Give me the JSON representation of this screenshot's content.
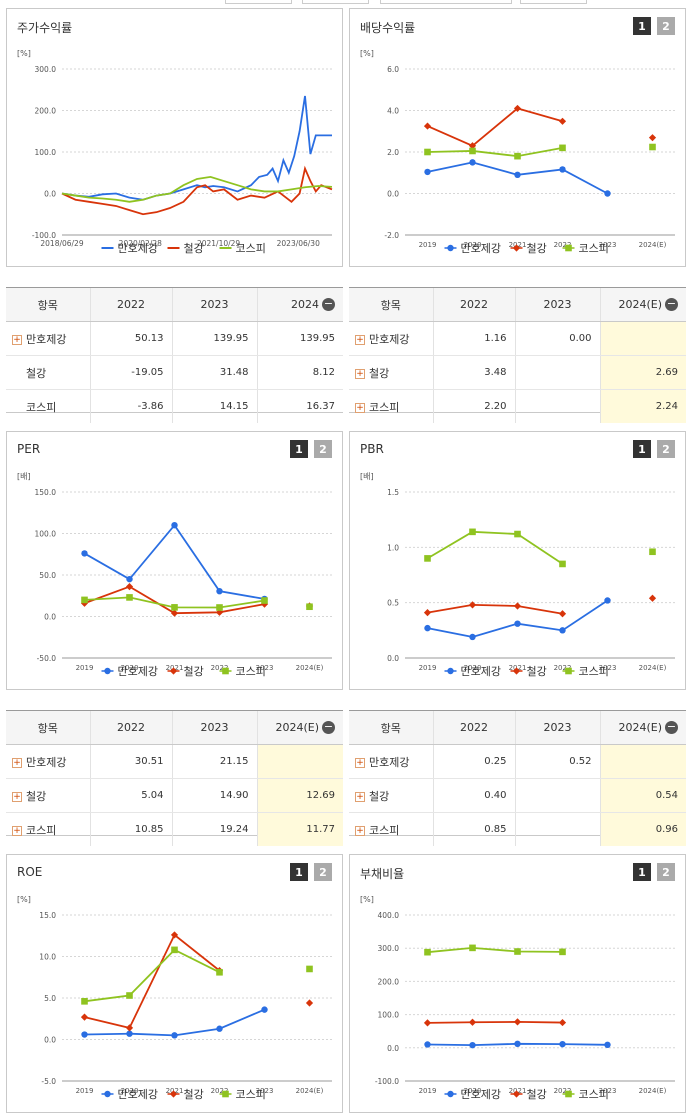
{
  "colors": {
    "s1": "#2a6ee2",
    "s2": "#d8340a",
    "s3": "#8fc320"
  },
  "charts": [
    {
      "key": "price",
      "title": "주가수익률",
      "buttons": [],
      "unit": "[%]",
      "legend": [
        "만호제강",
        "철강",
        "코스피"
      ],
      "yticks": [
        "300.0",
        "200.0",
        "100.0",
        "0.0",
        "-100.0"
      ],
      "xticks": [
        "2018/06/29",
        "2020/02/28",
        "2021/10/29",
        "2023/06/30"
      ]
    },
    {
      "key": "dividend",
      "title": "배당수익률",
      "buttons": [
        "1",
        "2"
      ],
      "unit": "[%]",
      "legend": [
        "만호제강",
        "철강",
        "코스피"
      ],
      "yticks": [
        "6.0",
        "4.0",
        "2.0",
        "0.0",
        "-2.0"
      ],
      "xticks": [
        "2019",
        "2020",
        "2021",
        "2022",
        "2023",
        "2024(E)"
      ]
    },
    {
      "key": "per",
      "title": "PER",
      "buttons": [
        "1",
        "2"
      ],
      "unit": "[배]",
      "legend": [
        "만호제강",
        "철강",
        "코스피"
      ],
      "yticks": [
        "150.0",
        "100.0",
        "50.0",
        "0.0",
        "-50.0"
      ],
      "xticks": [
        "2019",
        "2020",
        "2021",
        "2022",
        "2023",
        "2024(E)"
      ]
    },
    {
      "key": "pbr",
      "title": "PBR",
      "buttons": [
        "1",
        "2"
      ],
      "unit": "[배]",
      "legend": [
        "만호제강",
        "철강",
        "코스피"
      ],
      "yticks": [
        "1.5",
        "1.0",
        "0.5",
        "0.0"
      ],
      "xticks": [
        "2019",
        "2020",
        "2021",
        "2022",
        "2023",
        "2024(E)"
      ]
    },
    {
      "key": "roe",
      "title": "ROE",
      "buttons": [
        "1",
        "2"
      ],
      "unit": "[%]",
      "legend": [
        "만호제강",
        "철강",
        "코스피"
      ],
      "yticks": [
        "15.0",
        "10.0",
        "5.0",
        "0.0",
        "-5.0"
      ],
      "xticks": [
        "2019",
        "2020",
        "2021",
        "2022",
        "2023",
        "2024(E)"
      ]
    },
    {
      "key": "debt",
      "title": "부채비율",
      "buttons": [
        "1",
        "2"
      ],
      "unit": "[%]",
      "legend": [
        "만호제강",
        "철강",
        "코스피"
      ],
      "yticks": [
        "400.0",
        "300.0",
        "200.0",
        "100.0",
        "0.0",
        "-100.0"
      ],
      "xticks": [
        "2019",
        "2020",
        "2021",
        "2022",
        "2023",
        "2024(E)"
      ]
    }
  ],
  "chart_data": [
    {
      "type": "line",
      "title": "주가수익률",
      "ylabel": "[%]",
      "ylim": [
        -100,
        300
      ],
      "x_range": [
        "2018/06/29",
        "2024"
      ],
      "series": [
        {
          "name": "만호제강",
          "x": [
            0,
            0.05,
            0.1,
            0.15,
            0.2,
            0.25,
            0.3,
            0.35,
            0.4,
            0.45,
            0.5,
            0.53,
            0.56,
            0.6,
            0.65,
            0.7,
            0.73,
            0.76,
            0.78,
            0.8,
            0.82,
            0.84,
            0.86,
            0.88,
            0.9,
            0.92,
            0.94,
            0.96,
            1.0
          ],
          "values": [
            0,
            -5,
            -8,
            -2,
            0,
            -10,
            -15,
            -5,
            0,
            10,
            20,
            15,
            18,
            15,
            5,
            20,
            40,
            45,
            60,
            30,
            80,
            50,
            90,
            150,
            235,
            95,
            140,
            140,
            140
          ]
        },
        {
          "name": "철강",
          "x": [
            0,
            0.05,
            0.1,
            0.15,
            0.2,
            0.25,
            0.3,
            0.35,
            0.4,
            0.45,
            0.5,
            0.53,
            0.56,
            0.6,
            0.65,
            0.7,
            0.75,
            0.8,
            0.85,
            0.88,
            0.9,
            0.92,
            0.94,
            0.96,
            1.0
          ],
          "values": [
            0,
            -15,
            -20,
            -25,
            -30,
            -40,
            -50,
            -45,
            -35,
            -20,
            15,
            20,
            5,
            10,
            -15,
            -5,
            -10,
            5,
            -20,
            0,
            60,
            30,
            5,
            20,
            10
          ]
        },
        {
          "name": "코스피",
          "x": [
            0,
            0.05,
            0.1,
            0.15,
            0.2,
            0.25,
            0.3,
            0.35,
            0.4,
            0.45,
            0.5,
            0.55,
            0.6,
            0.65,
            0.7,
            0.75,
            0.8,
            0.85,
            0.9,
            0.95,
            1.0
          ],
          "values": [
            0,
            -5,
            -10,
            -12,
            -15,
            -20,
            -15,
            -5,
            0,
            20,
            35,
            40,
            30,
            20,
            10,
            5,
            5,
            10,
            15,
            18,
            16
          ]
        }
      ]
    },
    {
      "type": "line",
      "title": "배당수익률",
      "ylabel": "[%]",
      "ylim": [
        -2,
        6
      ],
      "categories": [
        "2019",
        "2020",
        "2021",
        "2022",
        "2023",
        "2024(E)"
      ],
      "series": [
        {
          "name": "만호제강",
          "values": [
            1.04,
            1.5,
            0.9,
            1.16,
            0.0,
            null
          ]
        },
        {
          "name": "철강",
          "values": [
            3.25,
            2.3,
            4.1,
            3.48,
            null,
            2.69
          ]
        },
        {
          "name": "코스피",
          "values": [
            2.0,
            2.05,
            1.8,
            2.2,
            null,
            2.24
          ]
        }
      ]
    },
    {
      "type": "line",
      "title": "PER",
      "ylabel": "[배]",
      "ylim": [
        -50,
        150
      ],
      "categories": [
        "2019",
        "2020",
        "2021",
        "2022",
        "2023",
        "2024(E)"
      ],
      "series": [
        {
          "name": "만호제강",
          "values": [
            76,
            45,
            110,
            30.51,
            21.15,
            null
          ]
        },
        {
          "name": "철강",
          "values": [
            16,
            36,
            4,
            5.04,
            14.9,
            12.69
          ]
        },
        {
          "name": "코스피",
          "values": [
            20,
            23,
            11,
            10.85,
            19.24,
            11.77
          ]
        }
      ]
    },
    {
      "type": "line",
      "title": "PBR",
      "ylabel": "[배]",
      "ylim": [
        0,
        1.5
      ],
      "categories": [
        "2019",
        "2020",
        "2021",
        "2022",
        "2023",
        "2024(E)"
      ],
      "series": [
        {
          "name": "만호제강",
          "values": [
            0.27,
            0.19,
            0.31,
            0.25,
            0.52,
            null
          ]
        },
        {
          "name": "철강",
          "values": [
            0.41,
            0.48,
            0.47,
            0.4,
            null,
            0.54
          ]
        },
        {
          "name": "코스피",
          "values": [
            0.9,
            1.14,
            1.12,
            0.85,
            null,
            0.96
          ]
        }
      ]
    },
    {
      "type": "line",
      "title": "ROE",
      "ylabel": "[%]",
      "ylim": [
        -5,
        15
      ],
      "categories": [
        "2019",
        "2020",
        "2021",
        "2022",
        "2023",
        "2024(E)"
      ],
      "series": [
        {
          "name": "만호제강",
          "values": [
            0.6,
            0.7,
            0.5,
            1.3,
            3.6,
            null
          ]
        },
        {
          "name": "철강",
          "values": [
            2.7,
            1.4,
            12.6,
            8.3,
            null,
            4.4
          ]
        },
        {
          "name": "코스피",
          "values": [
            4.6,
            5.3,
            10.8,
            8.1,
            null,
            8.5
          ]
        }
      ]
    },
    {
      "type": "line",
      "title": "부채비율",
      "ylabel": "[%]",
      "ylim": [
        -100,
        400
      ],
      "categories": [
        "2019",
        "2020",
        "2021",
        "2022",
        "2023",
        "2024(E)"
      ],
      "series": [
        {
          "name": "만호제강",
          "values": [
            10,
            8,
            12,
            11,
            9,
            null
          ]
        },
        {
          "name": "철강",
          "values": [
            75,
            77,
            78,
            76,
            null,
            null
          ]
        },
        {
          "name": "코스피",
          "values": [
            288,
            301,
            290,
            289,
            null,
            null
          ]
        }
      ]
    }
  ],
  "tables": [
    {
      "key": "price",
      "header_label": "항목",
      "cols": [
        "2022",
        "2023",
        "2024"
      ],
      "last_col_est": false,
      "rows": [
        {
          "label": "만호제강",
          "plus": true,
          "vals": [
            "50.13",
            "139.95",
            "139.95"
          ]
        },
        {
          "label": "철강",
          "plus": false,
          "vals": [
            "-19.05",
            "31.48",
            "8.12"
          ]
        },
        {
          "label": "코스피",
          "plus": false,
          "vals": [
            "-3.86",
            "14.15",
            "16.37"
          ]
        }
      ]
    },
    {
      "key": "dividend",
      "header_label": "항목",
      "cols": [
        "2022",
        "2023",
        "2024(E)"
      ],
      "last_col_est": true,
      "rows": [
        {
          "label": "만호제강",
          "plus": true,
          "vals": [
            "1.16",
            "0.00",
            ""
          ]
        },
        {
          "label": "철강",
          "plus": true,
          "vals": [
            "3.48",
            "",
            "2.69"
          ]
        },
        {
          "label": "코스피",
          "plus": true,
          "vals": [
            "2.20",
            "",
            "2.24"
          ]
        }
      ]
    },
    {
      "key": "per",
      "header_label": "항목",
      "cols": [
        "2022",
        "2023",
        "2024(E)"
      ],
      "last_col_est": true,
      "rows": [
        {
          "label": "만호제강",
          "plus": true,
          "vals": [
            "30.51",
            "21.15",
            ""
          ]
        },
        {
          "label": "철강",
          "plus": true,
          "vals": [
            "5.04",
            "14.90",
            "12.69"
          ]
        },
        {
          "label": "코스피",
          "plus": true,
          "vals": [
            "10.85",
            "19.24",
            "11.77"
          ]
        }
      ]
    },
    {
      "key": "pbr",
      "header_label": "항목",
      "cols": [
        "2022",
        "2023",
        "2024(E)"
      ],
      "last_col_est": true,
      "rows": [
        {
          "label": "만호제강",
          "plus": true,
          "vals": [
            "0.25",
            "0.52",
            ""
          ]
        },
        {
          "label": "철강",
          "plus": true,
          "vals": [
            "0.40",
            "",
            "0.54"
          ]
        },
        {
          "label": "코스피",
          "plus": true,
          "vals": [
            "0.85",
            "",
            "0.96"
          ]
        }
      ]
    }
  ]
}
